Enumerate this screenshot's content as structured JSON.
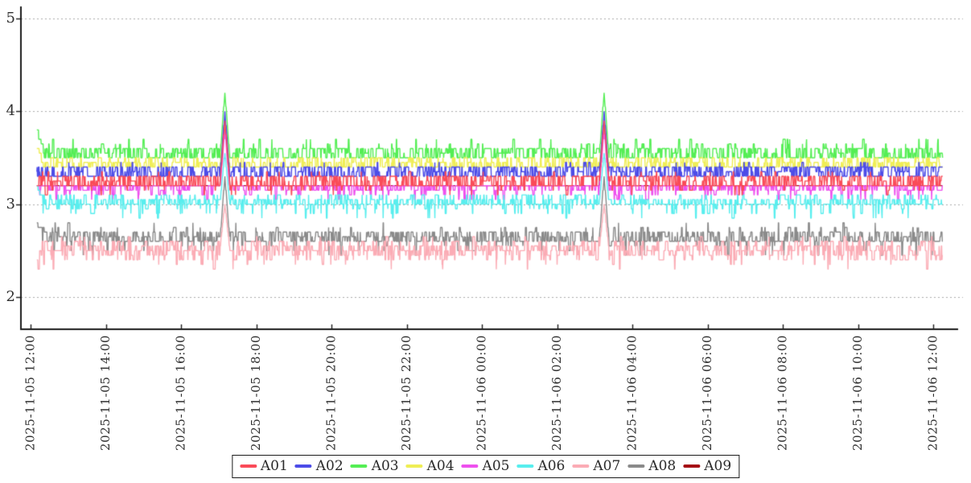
{
  "chart_data": {
    "type": "line",
    "title": "",
    "xlabel": "",
    "ylabel": "",
    "grid": "horizontal-dotted",
    "grid_color": "#aaaaaa",
    "axis_color": "#1a1a1a",
    "tick_text_color": "#303030",
    "legend_position": "bottom-center",
    "y_ticks": [
      5,
      4,
      3,
      2
    ],
    "ylim": [
      1.66,
      5.13
    ],
    "x_tick_labels": [
      "2025-11-05 12:00",
      "2025-11-05 14:00",
      "2025-11-05 16:00",
      "2025-11-05 18:00",
      "2025-11-05 20:00",
      "2025-11-05 22:00",
      "2025-11-06 00:00",
      "2025-11-06 02:00",
      "2025-11-06 04:00",
      "2025-11-06 06:00",
      "2025-11-06 08:00",
      "2025-11-06 10:00",
      "2025-11-06 12:00"
    ],
    "x_tick_interval_minutes": 120,
    "data_start_minute": 10,
    "data_end_minute": 1455,
    "sample_step_minutes": 0.5,
    "value_quantum": 0.05,
    "noise_keep_probability": 0.6,
    "seed": 7,
    "spikes": {
      "center_minutes": [
        310,
        915
      ],
      "half_width_minutes": 8
    },
    "series": [
      {
        "name": "A01",
        "color": "#fa4b58",
        "band": [
          3.2,
          3.3
        ],
        "levels": [
          3.1,
          3.15,
          3.2,
          3.25,
          3.3,
          3.35
        ],
        "weights": [
          2,
          4,
          40,
          15,
          36,
          3
        ],
        "spike_base": 3.2,
        "spike_peak": 3.9,
        "start_levels": []
      },
      {
        "name": "A02",
        "color": "#4c4ce8",
        "band": [
          3.3,
          3.4
        ],
        "levels": [
          3.3,
          3.35,
          3.4,
          3.45
        ],
        "weights": [
          45,
          18,
          34,
          3
        ],
        "spike_base": 3.3,
        "spike_peak": 4.0,
        "start_levels": []
      },
      {
        "name": "A03",
        "color": "#54ee54",
        "band": [
          3.5,
          3.6
        ],
        "levels": [
          3.5,
          3.55,
          3.6,
          3.65,
          3.7
        ],
        "weights": [
          42,
          18,
          32,
          5,
          3
        ],
        "spike_base": 3.5,
        "spike_peak": 4.2,
        "start_levels": [
          [
            3.8,
            3
          ],
          [
            3.7,
            4
          ],
          [
            3.65,
            3
          ]
        ]
      },
      {
        "name": "A04",
        "color": "#efee55",
        "band": [
          3.4,
          3.5
        ],
        "levels": [
          3.4,
          3.45,
          3.5
        ],
        "weights": [
          55,
          25,
          20
        ],
        "spike_base": 3.4,
        "spike_peak": 3.9,
        "start_levels": [
          [
            3.6,
            4
          ],
          [
            3.55,
            3
          ]
        ]
      },
      {
        "name": "A05",
        "color": "#ee50ee",
        "band": [
          3.15,
          3.2
        ],
        "levels": [
          3.05,
          3.1,
          3.15,
          3.2
        ],
        "weights": [
          3,
          7,
          30,
          60
        ],
        "spike_base": 3.15,
        "spike_peak": 3.8,
        "start_levels": []
      },
      {
        "name": "A06",
        "color": "#58eeee",
        "band": [
          3.0,
          3.1
        ],
        "levels": [
          2.85,
          2.9,
          2.95,
          3.0,
          3.05,
          3.1
        ],
        "weights": [
          2,
          5,
          6,
          45,
          30,
          12
        ],
        "spike_base": 3.0,
        "spike_peak": 3.55,
        "start_levels": [
          [
            3.2,
            2
          ],
          [
            3.15,
            3
          ],
          [
            3.1,
            3
          ]
        ]
      },
      {
        "name": "A07",
        "color": "#fbacb5",
        "band": [
          2.4,
          2.6
        ],
        "levels": [
          2.3,
          2.35,
          2.4,
          2.45,
          2.5,
          2.55,
          2.6,
          2.65
        ],
        "weights": [
          1,
          2,
          10,
          18,
          30,
          22,
          15,
          2
        ],
        "spike_base": 2.5,
        "spike_peak": 3.0,
        "start_levels": []
      },
      {
        "name": "A08",
        "color": "#8a8a8a",
        "band": [
          2.6,
          2.7
        ],
        "levels": [
          2.45,
          2.5,
          2.55,
          2.6,
          2.65,
          2.7,
          2.75,
          2.8
        ],
        "weights": [
          2,
          3,
          4,
          40,
          20,
          26,
          4,
          1
        ],
        "spike_base": 2.6,
        "spike_peak": 3.3,
        "start_levels": [
          [
            2.8,
            2
          ],
          [
            2.75,
            3
          ]
        ]
      },
      {
        "name": "A09",
        "color": "#a50f15",
        "band": [
          3.2,
          3.2
        ],
        "levels": [
          3.2
        ],
        "weights": [
          1
        ],
        "spike_base": 3.2,
        "spike_peak": 3.9,
        "start_levels": []
      }
    ],
    "draw_order": [
      "A09",
      "A03",
      "A04",
      "A05",
      "A06",
      "A02",
      "A01",
      "A08",
      "A07"
    ]
  }
}
